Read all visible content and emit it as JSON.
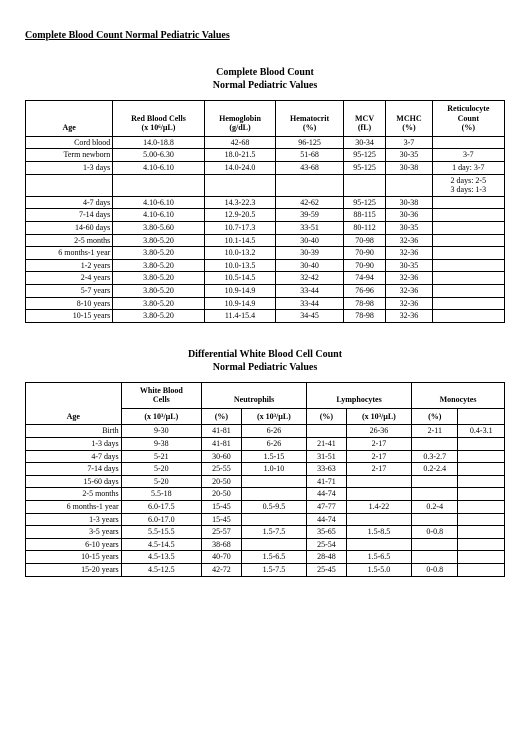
{
  "pageTitle": "Complete Blood Count Normal Pediatric Values",
  "cbc": {
    "title": "Complete Blood Count\nNormal Pediatric Values",
    "headers": {
      "age": "Age",
      "rbc": "Red Blood Cells\n(x 10⁶/µL)",
      "hgb": "Hemoglobin\n(g/dL)",
      "hct": "Hematocrit\n(%)",
      "mcv": "MCV\n(fL)",
      "mchc": "MCHC\n(%)",
      "retic": "Reticulocyte\nCount\n(%)"
    },
    "rows": [
      {
        "age": "Cord blood",
        "rbc": "14.0-18.8",
        "hgb": "42-68",
        "hct": "96-125",
        "mcv": "30-34",
        "mchc": "3-7",
        "retic": ""
      },
      {
        "age": "Term newborn",
        "rbc": "5.00-6.30",
        "hgb": "18.0-21.5",
        "hct": "51-68",
        "mcv": "95-125",
        "mchc": "30-35",
        "retic": "3-7"
      },
      {
        "age": "1-3 days",
        "rbc": "4.10-6.10",
        "hgb": "14.0-24.0",
        "hct": "43-68",
        "mcv": "95-125",
        "mchc": "30-38",
        "retic": "1 day: 3-7"
      },
      {
        "age": "",
        "rbc": "",
        "hgb": "",
        "hct": "",
        "mcv": "",
        "mchc": "",
        "retic": "2 days: 2-5\n3 days: 1-3"
      },
      {
        "age": "4-7 days",
        "rbc": "4.10-6.10",
        "hgb": "14.3-22.3",
        "hct": "42-62",
        "mcv": "95-125",
        "mchc": "30-38",
        "retic": ""
      },
      {
        "age": "7-14 days",
        "rbc": "4.10-6.10",
        "hgb": "12.9-20.5",
        "hct": "39-59",
        "mcv": "88-115",
        "mchc": "30-36",
        "retic": ""
      },
      {
        "age": "14-60 days",
        "rbc": "3.80-5.60",
        "hgb": "10.7-17.3",
        "hct": "33-51",
        "mcv": "80-112",
        "mchc": "30-35",
        "retic": ""
      },
      {
        "age": "2-5 months",
        "rbc": "3.80-5.20",
        "hgb": "10.1-14.5",
        "hct": "30-40",
        "mcv": "70-98",
        "mchc": "32-36",
        "retic": ""
      },
      {
        "age": "6 months-1 year",
        "rbc": "3.80-5.20",
        "hgb": "10.0-13.2",
        "hct": "30-39",
        "mcv": "70-90",
        "mchc": "32-36",
        "retic": ""
      },
      {
        "age": "1-2 years",
        "rbc": "3.80-5.20",
        "hgb": "10.0-13.5",
        "hct": "30-40",
        "mcv": "70-90",
        "mchc": "30-35",
        "retic": ""
      },
      {
        "age": "2-4 years",
        "rbc": "3.80-5.20",
        "hgb": "10.5-14.5",
        "hct": "32-42",
        "mcv": "74-94",
        "mchc": "32-36",
        "retic": ""
      },
      {
        "age": "5-7 years",
        "rbc": "3.80-5.20",
        "hgb": "10.9-14.9",
        "hct": "33-44",
        "mcv": "76-96",
        "mchc": "32-36",
        "retic": ""
      },
      {
        "age": "8-10 years",
        "rbc": "3.80-5.20",
        "hgb": "10.9-14.9",
        "hct": "33-44",
        "mcv": "78-98",
        "mchc": "32-36",
        "retic": ""
      },
      {
        "age": "10-15 years",
        "rbc": "3.80-5.20",
        "hgb": "11.4-15.4",
        "hct": "34-45",
        "mcv": "78-98",
        "mchc": "32-36",
        "retic": ""
      }
    ]
  },
  "diff": {
    "title": "Differential White Blood Cell Count\nNormal Pediatric Values",
    "headers": {
      "age": "Age",
      "wbc": "White Blood\nCells",
      "wbcUnit": "(x 10³/µL)",
      "neut": "Neutrophils",
      "neutPct": "(%)",
      "neutAbs": "(x 10³/µL)",
      "lymph": "Lymphocytes",
      "lymphPct": "(%)",
      "lymphAbs": "(x 10³/µL)",
      "mono": "Monocytes",
      "monoPct": "(%)",
      "eos": "",
      "eosPct": ""
    },
    "rows": [
      {
        "age": "Birth",
        "wbc": "9-30",
        "neutPct": "41-81",
        "neutAbs": "6-26",
        "lymphPct": "",
        "lymphAbs": "26-36",
        "monoPct": "2-11",
        "eos": "0.4-3.1"
      },
      {
        "age": "1-3 days",
        "wbc": "9-38",
        "neutPct": "41-81",
        "neutAbs": "6-26",
        "lymphPct": "21-41",
        "lymphAbs": "2-17",
        "monoPct": "",
        "eos": ""
      },
      {
        "age": "4-7 days",
        "wbc": "5-21",
        "neutPct": "30-60",
        "neutAbs": "1.5-15",
        "lymphPct": "31-51",
        "lymphAbs": "2-17",
        "monoPct": "0.3-2.7",
        "eos": ""
      },
      {
        "age": "7-14 days",
        "wbc": "5-20",
        "neutPct": "25-55",
        "neutAbs": "1.0-10",
        "lymphPct": "33-63",
        "lymphAbs": "2-17",
        "monoPct": "0.2-2.4",
        "eos": ""
      },
      {
        "age": "15-60 days",
        "wbc": "5-20",
        "neutPct": "20-50",
        "neutAbs": "",
        "lymphPct": "41-71",
        "lymphAbs": "",
        "monoPct": "",
        "eos": ""
      },
      {
        "age": "2-5 months",
        "wbc": "5.5-18",
        "neutPct": "20-50",
        "neutAbs": "",
        "lymphPct": "44-74",
        "lymphAbs": "",
        "monoPct": "",
        "eos": ""
      },
      {
        "age": "6 months-1 year",
        "wbc": "6.0-17.5",
        "neutPct": "15-45",
        "neutAbs": "0.5-9.5",
        "lymphPct": "47-77",
        "lymphAbs": "1.4-22",
        "monoPct": "0.2-4",
        "eos": ""
      },
      {
        "age": "1-3 years",
        "wbc": "6.0-17.0",
        "neutPct": "15-45",
        "neutAbs": "",
        "lymphPct": "44-74",
        "lymphAbs": "",
        "monoPct": "",
        "eos": ""
      },
      {
        "age": "3-5 years",
        "wbc": "5.5-15.5",
        "neutPct": "25-57",
        "neutAbs": "1.5-7.5",
        "lymphPct": "35-65",
        "lymphAbs": "1.5-8.5",
        "monoPct": "0-0.8",
        "eos": ""
      },
      {
        "age": "6-10 years",
        "wbc": "4.5-14.5",
        "neutPct": "38-68",
        "neutAbs": "",
        "lymphPct": "25-54",
        "lymphAbs": "",
        "monoPct": "",
        "eos": ""
      },
      {
        "age": "10-15 years",
        "wbc": "4.5-13.5",
        "neutPct": "40-70",
        "neutAbs": "1.5-6.5",
        "lymphPct": "28-48",
        "lymphAbs": "1.5-6.5",
        "monoPct": "",
        "eos": ""
      },
      {
        "age": "15-20 years",
        "wbc": "4.5-12.5",
        "neutPct": "42-72",
        "neutAbs": "1.5-7.5",
        "lymphPct": "25-45",
        "lymphAbs": "1.5-5.0",
        "monoPct": "0-0.8",
        "eos": ""
      }
    ]
  }
}
